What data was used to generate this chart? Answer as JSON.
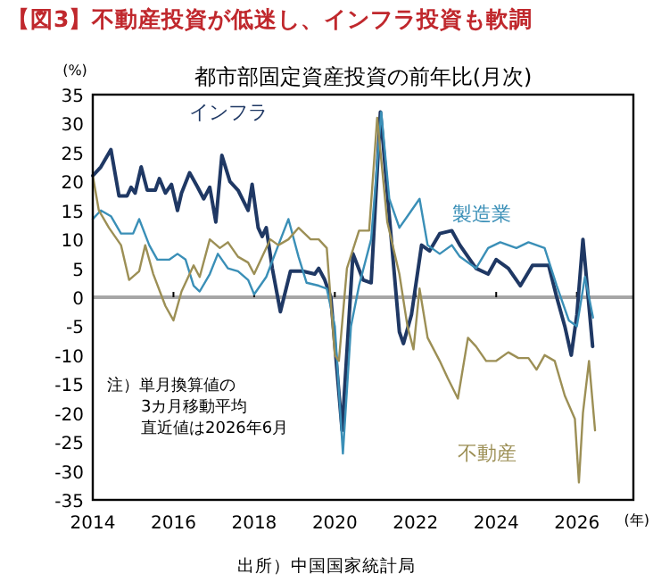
{
  "chart_data": {
    "type": "line",
    "title": "【図3】不動産投資が低迷し、インフラ投資も軟調",
    "subtitle": "都市部固定資産投資の前年比(月次)",
    "ylabel": "(%)",
    "xlim": [
      2014,
      2027.4
    ],
    "xticks": [
      2014,
      2016,
      2018,
      2020,
      2022,
      2024,
      2026
    ],
    "ylim": [
      -35,
      35
    ],
    "yticks": [
      -35,
      -30,
      -25,
      -20,
      -15,
      -10,
      -5,
      0,
      5,
      10,
      15,
      20,
      25,
      30,
      35
    ],
    "grid": false,
    "line_style": "solid",
    "ref_lines": [
      {
        "axis": "y",
        "value": 0,
        "color": "#a6a6a6"
      }
    ],
    "annotations": [
      "(年)",
      "注）単月換算値の3カ月移動平均",
      "直近値は2026年6月",
      "出所）中国国家統計局"
    ],
    "series": [
      {
        "name": "インフラ",
        "color": "#1f3864",
        "x": [
          2014.0,
          2014.2,
          2014.45,
          2014.65,
          2014.85,
          2014.95,
          2015.05,
          2015.2,
          2015.35,
          2015.55,
          2015.65,
          2015.8,
          2015.95,
          2016.1,
          2016.2,
          2016.4,
          2016.6,
          2016.75,
          2016.9,
          2017.05,
          2017.2,
          2017.4,
          2017.6,
          2017.85,
          2017.95,
          2018.1,
          2018.2,
          2018.3,
          2018.45,
          2018.65,
          2018.9,
          2019.2,
          2019.5,
          2019.6,
          2019.75,
          2019.9,
          2020.18,
          2020.45,
          2020.7,
          2020.9,
          2021.13,
          2021.4,
          2021.6,
          2021.7,
          2021.9,
          2022.15,
          2022.35,
          2022.6,
          2022.9,
          2023.1,
          2023.5,
          2023.8,
          2024.0,
          2024.3,
          2024.6,
          2024.9,
          2025.3,
          2025.5,
          2025.7,
          2025.86,
          2026.0,
          2026.15,
          2026.39
        ],
        "values": [
          21,
          22.5,
          25.5,
          17.5,
          17.5,
          19,
          18,
          22.5,
          18.5,
          18.5,
          20.5,
          18,
          19.5,
          15,
          18,
          21.5,
          19,
          17,
          19,
          13,
          24.5,
          20,
          18.5,
          15,
          19.5,
          12,
          10.5,
          12,
          5,
          -2.5,
          4.5,
          4.5,
          4,
          5,
          3,
          0,
          -23,
          7.5,
          3,
          2.5,
          32,
          10,
          -6,
          -8,
          -3,
          9,
          8,
          11,
          11.5,
          9,
          5,
          4,
          6.5,
          5,
          2,
          5.5,
          5.5,
          0,
          -5,
          -10,
          -3,
          10,
          -8.5
        ]
      },
      {
        "name": "製造業",
        "color": "#3a8fb7",
        "x": [
          2014.0,
          2014.2,
          2014.45,
          2014.7,
          2015.0,
          2015.15,
          2015.4,
          2015.6,
          2015.9,
          2016.1,
          2016.3,
          2016.5,
          2016.65,
          2016.9,
          2017.1,
          2017.35,
          2017.6,
          2017.85,
          2018.0,
          2018.3,
          2018.6,
          2018.85,
          2019.1,
          2019.3,
          2019.6,
          2019.8,
          2020.0,
          2020.2,
          2020.4,
          2020.6,
          2020.9,
          2021.15,
          2021.35,
          2021.6,
          2021.8,
          2022.1,
          2022.3,
          2022.6,
          2022.9,
          2023.1,
          2023.5,
          2023.8,
          2024.1,
          2024.5,
          2024.8,
          2025.2,
          2025.5,
          2025.8,
          2026.0,
          2026.2,
          2026.4
        ],
        "values": [
          13.5,
          15,
          14,
          11,
          11,
          13.5,
          9,
          6.5,
          6.5,
          7.5,
          6.5,
          2,
          1,
          4,
          7.5,
          5,
          4.5,
          3,
          0.5,
          3.5,
          9,
          13.5,
          7,
          2.5,
          2,
          1.5,
          -5,
          -27,
          -5,
          2,
          10,
          32,
          17,
          12,
          14,
          17,
          9,
          7.5,
          9,
          7,
          5,
          8.5,
          9.5,
          8.5,
          9.5,
          8.5,
          2,
          -4,
          -5,
          3.5,
          -3.5
        ]
      },
      {
        "name": "不動産",
        "color": "#9c8f55",
        "x": [
          2014.0,
          2014.15,
          2014.4,
          2014.7,
          2014.9,
          2015.15,
          2015.3,
          2015.5,
          2015.8,
          2016.0,
          2016.2,
          2016.5,
          2016.65,
          2016.9,
          2017.15,
          2017.35,
          2017.6,
          2017.85,
          2018.0,
          2018.2,
          2018.4,
          2018.6,
          2018.85,
          2019.1,
          2019.4,
          2019.6,
          2019.8,
          2020.0,
          2020.1,
          2020.3,
          2020.6,
          2020.85,
          2021.05,
          2021.3,
          2021.6,
          2021.8,
          2021.95,
          2022.1,
          2022.3,
          2022.6,
          2022.8,
          2023.05,
          2023.3,
          2023.5,
          2023.75,
          2024.0,
          2024.3,
          2024.55,
          2024.8,
          2025.0,
          2025.2,
          2025.45,
          2025.7,
          2025.95,
          2026.05,
          2026.15,
          2026.3,
          2026.45
        ],
        "values": [
          21,
          15,
          12,
          9,
          3,
          4.5,
          9,
          4,
          -1.5,
          -4,
          1,
          5.5,
          3.5,
          10,
          8.5,
          9.5,
          7,
          6,
          4,
          7,
          10,
          9,
          10,
          12,
          10,
          10,
          8.5,
          -10,
          -11,
          5,
          11.5,
          11.5,
          31,
          13,
          4,
          -5,
          -9,
          1.5,
          -7,
          -11,
          -14,
          -17.5,
          -7,
          -8.5,
          -11,
          -11,
          -9.5,
          -10.5,
          -10.5,
          -12.5,
          -10,
          -11,
          -17,
          -21,
          -32,
          -20,
          -11,
          -23
        ]
      }
    ]
  }
}
